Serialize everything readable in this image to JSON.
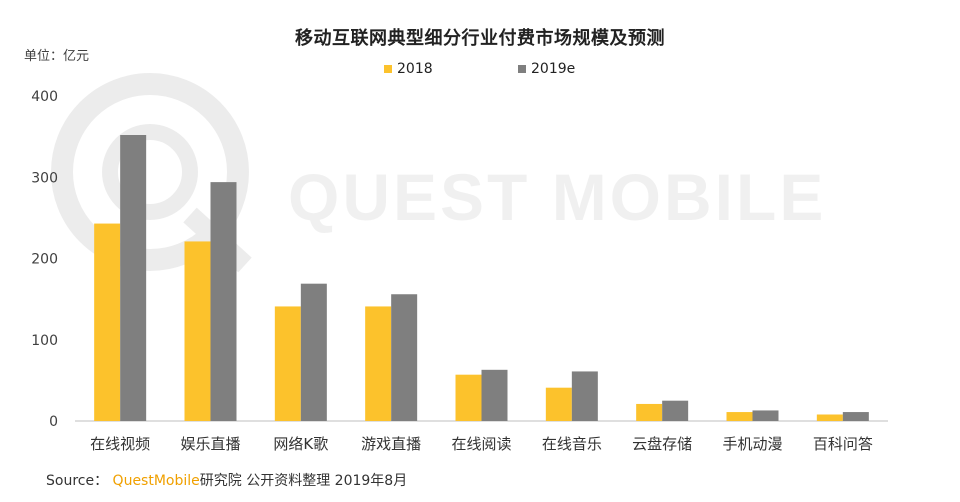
{
  "page": {
    "title": "移动互联网典型细分行业付费市场规模及预测",
    "unit_label": "单位：亿元",
    "source": {
      "prefix": "Source：",
      "brand": "QuestMobile",
      "suffix": "研究院 公开资料整理 2019年8月"
    },
    "watermark_text": "QUEST MOBILE"
  },
  "colors": {
    "series_2018": "#FCC22C",
    "series_2019e": "#7F7F7F",
    "axis": "#BFBFBF",
    "brand": "#F0A000"
  },
  "chart_data": {
    "type": "bar",
    "title": "移动互联网典型细分行业付费市场规模及预测",
    "xlabel": "",
    "ylabel": "单位：亿元",
    "ylim": [
      0,
      400
    ],
    "yticks": [
      0,
      100,
      200,
      300,
      400
    ],
    "grid": false,
    "legend_position": "top-center",
    "categories": [
      "在线视频",
      "娱乐直播",
      "网络K歌",
      "游戏直播",
      "在线阅读",
      "在线音乐",
      "云盘存储",
      "手机动漫",
      "百科问答"
    ],
    "series": [
      {
        "name": "2018",
        "color": "#FCC22C",
        "values": [
          243,
          221,
          141,
          141,
          57,
          41,
          21,
          11,
          8
        ]
      },
      {
        "name": "2019e",
        "color": "#7F7F7F",
        "values": [
          352,
          294,
          169,
          156,
          63,
          61,
          25,
          13,
          11
        ]
      }
    ]
  }
}
